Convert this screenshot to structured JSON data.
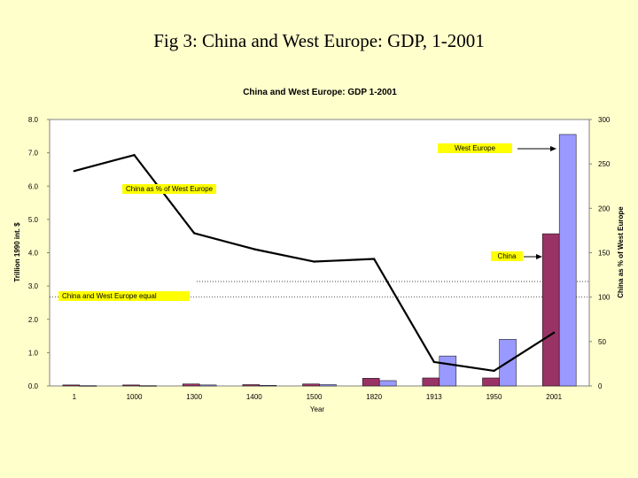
{
  "slide": {
    "title": "Fig 3: China and West Europe: GDP, 1-2001"
  },
  "chart_data": {
    "type": "bar",
    "title": "China and West Europe: GDP 1-2001",
    "xlabel": "Year",
    "ylabel": "Trillion 1990 int. $",
    "y2label": "China as % of West Europe",
    "ylim": [
      0,
      8
    ],
    "y_ticks": [
      "0.0",
      "1.0",
      "2.0",
      "3.0",
      "4.0",
      "5.0",
      "6.0",
      "7.0",
      "8.0"
    ],
    "y2lim": [
      0,
      300
    ],
    "y2_ticks": [
      "0",
      "50",
      "100",
      "150",
      "200",
      "250",
      "300"
    ],
    "categories": [
      "1",
      "1000",
      "1300",
      "1400",
      "1500",
      "1820",
      "1913",
      "1950",
      "2001"
    ],
    "series": [
      {
        "name": "China",
        "kind": "bar",
        "color": "#993366",
        "values": [
          0.03,
          0.03,
          0.06,
          0.04,
          0.06,
          0.23,
          0.24,
          0.24,
          4.57
        ]
      },
      {
        "name": "West Europe",
        "kind": "bar",
        "color": "#9999ff",
        "values": [
          0.01,
          0.01,
          0.03,
          0.02,
          0.04,
          0.16,
          0.9,
          1.4,
          7.55
        ]
      },
      {
        "name": "China as % of West Europe",
        "kind": "line",
        "axis": "right",
        "color": "#000000",
        "values": [
          242,
          260,
          172,
          154,
          140,
          143,
          27,
          17,
          60
        ]
      }
    ],
    "reference_line": {
      "label": "China and West Europe equal",
      "value": 100,
      "axis": "right"
    },
    "annotations": {
      "west_europe": "West Europe",
      "china_pct": "China as % of West Europe",
      "china": "China",
      "equal": "China and West Europe equal"
    }
  }
}
